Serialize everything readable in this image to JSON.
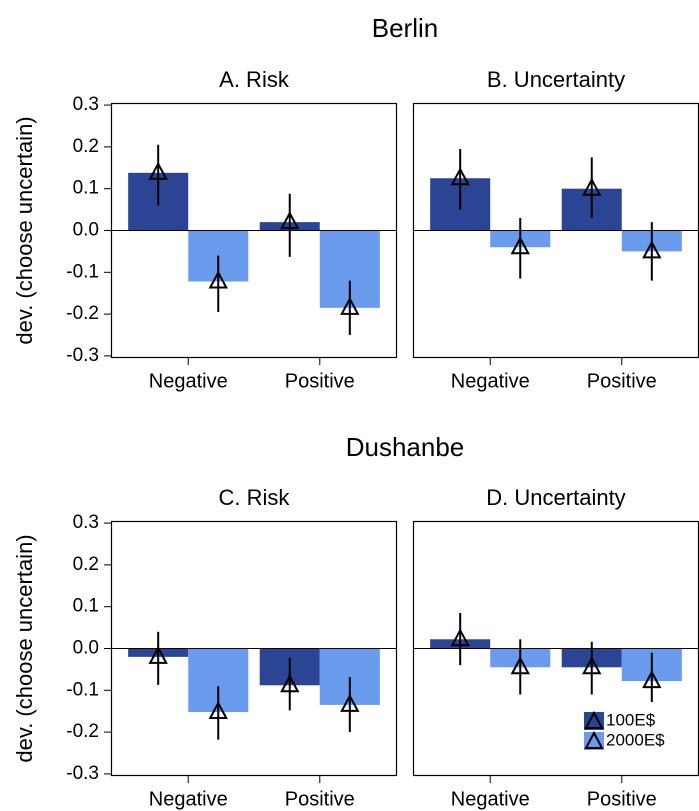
{
  "row_titles": [
    "Berlin",
    "Dushanbe"
  ],
  "chart_data": [
    {
      "type": "bar",
      "title": "A. Risk",
      "ylabel": "dev. (choose uncertain)",
      "categories": [
        "Negative",
        "Positive"
      ],
      "ylim": [
        -0.305,
        0.305
      ],
      "yticks": [
        {
          "value": 0.3,
          "label": "0.3"
        },
        {
          "value": 0.2,
          "label": "0.2"
        },
        {
          "value": 0.1,
          "label": "0.1"
        },
        {
          "value": 0,
          "label": "0.0"
        },
        {
          "value": -0.1,
          "label": "-0.1"
        },
        {
          "value": -0.2,
          "label": "-0.2"
        },
        {
          "value": -0.3,
          "label": "-0.3"
        }
      ],
      "series": [
        {
          "color": "#2b4494",
          "values": [
            0.138,
            0.02
          ],
          "lower": [
            0.06,
            -0.063
          ],
          "upper": [
            0.205,
            0.088
          ]
        },
        {
          "color": "#6a9bec",
          "values": [
            -0.122,
            -0.185
          ],
          "lower": [
            -0.195,
            -0.25
          ],
          "upper": [
            -0.06,
            -0.12
          ]
        }
      ]
    },
    {
      "type": "bar",
      "title": "B. Uncertainty",
      "categories": [
        "Negative",
        "Positive"
      ],
      "ylim": [
        -0.305,
        0.305
      ],
      "series": [
        {
          "color": "#2b4494",
          "values": [
            0.125,
            0.1
          ],
          "lower": [
            0.05,
            0.03
          ],
          "upper": [
            0.195,
            0.175
          ]
        },
        {
          "color": "#6a9bec",
          "values": [
            -0.04,
            -0.05
          ],
          "lower": [
            -0.115,
            -0.12
          ],
          "upper": [
            0.03,
            0.02
          ]
        }
      ]
    },
    {
      "type": "bar",
      "title": "C. Risk",
      "ylabel": "dev. (choose uncertain)",
      "categories": [
        "Negative",
        "Positive"
      ],
      "ylim": [
        -0.305,
        0.305
      ],
      "yticks": [
        {
          "value": 0.3,
          "label": "0.3"
        },
        {
          "value": 0.2,
          "label": "0.2"
        },
        {
          "value": 0.1,
          "label": "0.1"
        },
        {
          "value": 0,
          "label": "0.0"
        },
        {
          "value": -0.1,
          "label": "-0.1"
        },
        {
          "value": -0.2,
          "label": "-0.2"
        },
        {
          "value": -0.3,
          "label": "-0.3"
        }
      ],
      "series": [
        {
          "color": "#2b4494",
          "values": [
            -0.02,
            -0.088
          ],
          "lower": [
            -0.087,
            -0.148
          ],
          "upper": [
            0.04,
            -0.022
          ]
        },
        {
          "color": "#6a9bec",
          "values": [
            -0.152,
            -0.135
          ],
          "lower": [
            -0.218,
            -0.2
          ],
          "upper": [
            -0.09,
            -0.068
          ]
        }
      ]
    },
    {
      "type": "bar",
      "title": "D. Uncertainty",
      "categories": [
        "Negative",
        "Positive"
      ],
      "ylim": [
        -0.305,
        0.305
      ],
      "legend": "lower right",
      "series": [
        {
          "name": "100E$",
          "color": "#2b4494",
          "values": [
            0.022,
            -0.045
          ],
          "lower": [
            -0.04,
            -0.11
          ],
          "upper": [
            0.085,
            0.016
          ]
        },
        {
          "name": "2000E$",
          "color": "#6a9bec",
          "values": [
            -0.045,
            -0.078
          ],
          "lower": [
            -0.11,
            -0.128
          ],
          "upper": [
            0.022,
            -0.01
          ]
        }
      ]
    }
  ]
}
